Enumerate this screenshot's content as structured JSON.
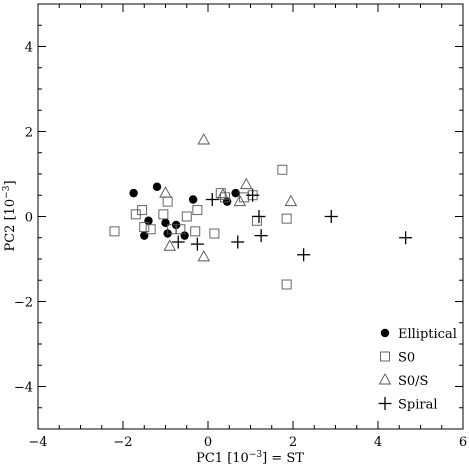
{
  "chart_data": {
    "type": "scatter",
    "xlabel": "PC1 [10",
    "xlabel_exp": "−3",
    "xlabel_tail": "] = ST",
    "ylabel": "PC2 [10",
    "ylabel_exp": "−3",
    "ylabel_tail": "]",
    "xlim": [
      -4,
      6
    ],
    "ylim": [
      -5,
      5
    ],
    "xticks": [
      -4,
      -2,
      0,
      2,
      4,
      6
    ],
    "yticks": [
      -4,
      -2,
      0,
      2,
      4
    ],
    "xtick_labels": [
      "−4",
      "−2",
      "0",
      "2",
      "4",
      "6"
    ],
    "ytick_labels": [
      "−4",
      "−2",
      "0",
      "2",
      "4"
    ],
    "grid": false,
    "legend_position": "bottom-right",
    "series": [
      {
        "name": "Elliptical",
        "marker": "filled-circle",
        "color": "#000000",
        "points": [
          [
            -1.75,
            0.55
          ],
          [
            -1.2,
            0.7
          ],
          [
            -1.5,
            -0.45
          ],
          [
            -1.4,
            -0.1
          ],
          [
            -1.0,
            -0.15
          ],
          [
            -0.95,
            -0.4
          ],
          [
            -0.75,
            -0.2
          ],
          [
            -0.55,
            -0.45
          ],
          [
            -0.35,
            0.4
          ],
          [
            0.45,
            0.35
          ],
          [
            0.65,
            0.55
          ]
        ]
      },
      {
        "name": "S0",
        "marker": "open-square",
        "color": "#555555",
        "points": [
          [
            -2.2,
            -0.35
          ],
          [
            -1.7,
            0.05
          ],
          [
            -1.55,
            0.15
          ],
          [
            -1.5,
            -0.25
          ],
          [
            -1.35,
            -0.3
          ],
          [
            -1.05,
            0.05
          ],
          [
            -0.95,
            0.35
          ],
          [
            -0.85,
            -0.3
          ],
          [
            -0.65,
            -0.3
          ],
          [
            -0.5,
            0.0
          ],
          [
            -0.3,
            -0.35
          ],
          [
            -0.25,
            0.15
          ],
          [
            0.15,
            -0.4
          ],
          [
            0.3,
            0.55
          ],
          [
            0.4,
            0.45
          ],
          [
            0.85,
            0.45
          ],
          [
            1.05,
            0.5
          ],
          [
            1.15,
            -0.1
          ],
          [
            1.75,
            1.1
          ],
          [
            1.85,
            -0.05
          ],
          [
            1.85,
            -1.6
          ]
        ]
      },
      {
        "name": "S0/S",
        "marker": "open-triangle",
        "color": "#555555",
        "points": [
          [
            -1.0,
            0.55
          ],
          [
            -0.9,
            -0.7
          ],
          [
            -0.1,
            1.8
          ],
          [
            -0.1,
            -0.95
          ],
          [
            0.35,
            0.5
          ],
          [
            0.75,
            0.35
          ],
          [
            0.9,
            0.75
          ],
          [
            1.95,
            0.35
          ]
        ]
      },
      {
        "name": "Spiral",
        "marker": "plus",
        "color": "#000000",
        "points": [
          [
            -0.7,
            -0.6
          ],
          [
            -0.25,
            -0.65
          ],
          [
            0.1,
            0.4
          ],
          [
            0.7,
            -0.6
          ],
          [
            1.05,
            0.5
          ],
          [
            1.2,
            0.0
          ],
          [
            1.25,
            -0.45
          ],
          [
            2.25,
            -0.9
          ],
          [
            2.9,
            0.0
          ],
          [
            4.65,
            -0.5
          ]
        ]
      }
    ]
  }
}
